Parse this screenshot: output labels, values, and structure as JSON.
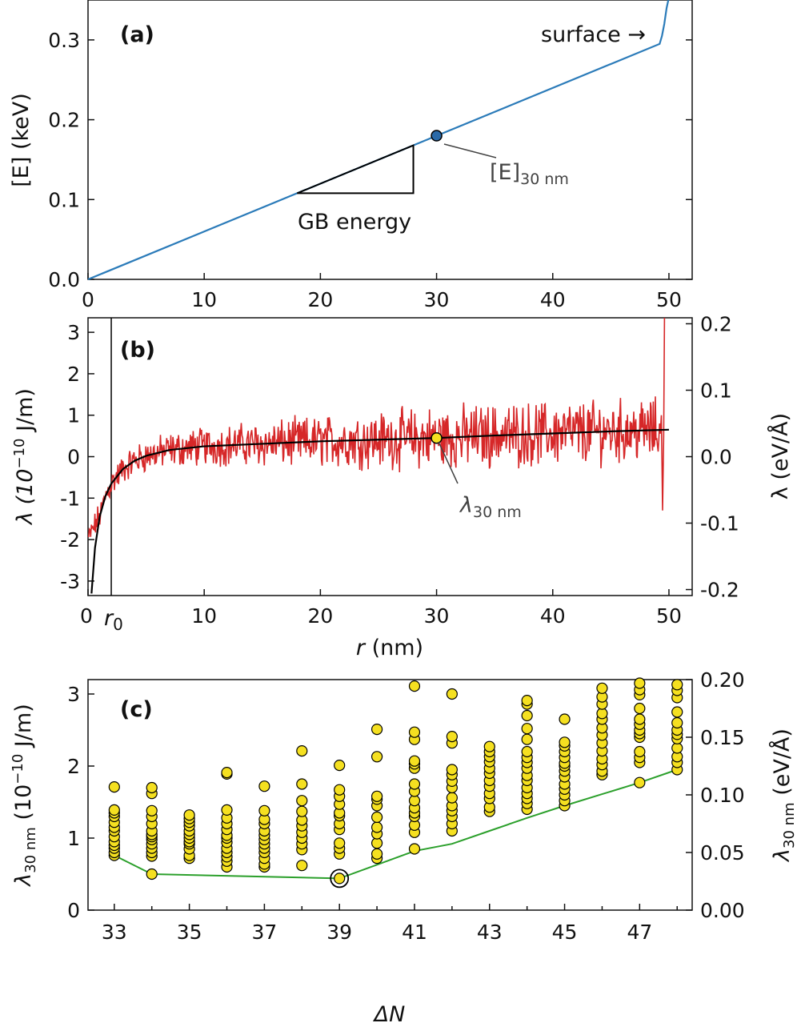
{
  "chart_data": [
    {
      "type": "line",
      "panel_label": "(a)",
      "ylabel": "[E] (keV)",
      "xlim": [
        0,
        52
      ],
      "ylim": [
        0,
        0.35
      ],
      "x_ticks": [
        "0",
        "10",
        "20",
        "30",
        "40",
        "50"
      ],
      "y_ticks": [
        "0.0",
        "0.1",
        "0.2",
        "0.3"
      ],
      "series": [
        {
          "color": "#2b7bb9",
          "x": [
            0,
            49.2,
            49.4,
            49.6,
            49.8,
            49.95
          ],
          "y": [
            0,
            0.295,
            0.305,
            0.32,
            0.34,
            0.36
          ]
        }
      ],
      "marker": {
        "x": 30,
        "y": 0.18,
        "color": "#2b6aa8"
      },
      "annotations": {
        "surface": "surface →",
        "e30_main": "[E]",
        "e30_sub": "30 nm",
        "gb_energy": "GB energy"
      }
    },
    {
      "type": "line",
      "panel_label": "(b)",
      "xlabel_italic": "r",
      "xlabel_unit": " (nm)",
      "ylabel_left": "λ (10",
      "ylabel_left_exp": "−10",
      "ylabel_left_unit": " J/m)",
      "ylabel_right": "λ (eV/Å)",
      "xlim": [
        0,
        52
      ],
      "ylim": [
        -3.35,
        3.35
      ],
      "ylim_right": [
        -0.209,
        0.209
      ],
      "x_ticks": [
        "0",
        "10",
        "20",
        "30",
        "40",
        "50"
      ],
      "y_ticks_left": [
        "-3",
        "-2",
        "-1",
        "0",
        "1",
        "2",
        "3"
      ],
      "y_ticks_right": [
        "-0.2",
        "-0.1",
        "0.0",
        "0.1",
        "0.2"
      ],
      "r0_label": "r",
      "r0_sub": "0",
      "r0": 2,
      "series": [
        {
          "name": "raw",
          "color": "#d62728",
          "description_points": "noisy"
        },
        {
          "name": "fit",
          "color": "#000000"
        }
      ],
      "fit_points": {
        "x": [
          0.3,
          0.6,
          1,
          1.5,
          2,
          3,
          4,
          5,
          7,
          10,
          15,
          20,
          25,
          30,
          35,
          40,
          45,
          50
        ],
        "y": [
          -3.3,
          -2.2,
          -1.45,
          -0.95,
          -0.65,
          -0.3,
          -0.1,
          0.02,
          0.16,
          0.25,
          0.31,
          0.37,
          0.41,
          0.45,
          0.51,
          0.56,
          0.61,
          0.65
        ]
      },
      "marker": {
        "x": 30,
        "y": 0.45,
        "color": "#f5e020"
      },
      "annotations": {
        "lambda_main": "λ",
        "lambda_sub": "30 nm"
      }
    },
    {
      "type": "scatter",
      "panel_label": "(c)",
      "xlabel": "ΔN",
      "ylabel_left_main": "λ",
      "ylabel_left_sub": "30 nm",
      "ylabel_left_rest": " (10",
      "ylabel_left_exp": "−10",
      "ylabel_left_unit": " J/m)",
      "ylabel_right_main": "λ",
      "ylabel_right_sub": "30 nm",
      "ylabel_right_unit": " (eV/Å)",
      "xlim": [
        32.3,
        48.4
      ],
      "ylim": [
        0,
        3.2
      ],
      "ylim_right": [
        0,
        0.2
      ],
      "x_ticks": [
        "33",
        "35",
        "37",
        "39",
        "41",
        "43",
        "45",
        "47"
      ],
      "y_ticks_left": [
        "0",
        "1",
        "2",
        "3"
      ],
      "y_ticks_right": [
        "0.00",
        "0.05",
        "0.10",
        "0.15",
        "0.20"
      ],
      "point_color": "#f5e020",
      "points": {
        "33": [
          0.76,
          0.8,
          0.86,
          0.9,
          0.95,
          1.02,
          1.1,
          1.15,
          1.22,
          1.3,
          1.35,
          1.39,
          1.71
        ],
        "34": [
          0.5,
          0.75,
          0.8,
          0.86,
          0.92,
          0.98,
          1.02,
          1.05,
          1.1,
          1.2,
          1.3,
          1.38,
          1.62,
          1.7
        ],
        "35": [
          0.72,
          0.76,
          0.85,
          0.92,
          0.95,
          1.0,
          1.05,
          1.1,
          1.17,
          1.22,
          1.27,
          1.32
        ],
        "36": [
          0.6,
          0.68,
          0.74,
          0.8,
          0.86,
          0.94,
          1.0,
          1.04,
          1.12,
          1.2,
          1.28,
          1.39,
          1.89,
          1.91
        ],
        "37": [
          0.6,
          0.64,
          0.72,
          0.8,
          0.86,
          0.92,
          0.98,
          1.04,
          1.1,
          1.2,
          1.26,
          1.38,
          1.72
        ],
        "38": [
          0.62,
          0.84,
          0.92,
          1.0,
          1.08,
          1.17,
          1.25,
          1.37,
          1.52,
          1.75,
          2.21
        ],
        "39": [
          0.44,
          0.78,
          0.86,
          0.93,
          1.12,
          1.2,
          1.31,
          1.35,
          1.47,
          1.58,
          1.67,
          2.01
        ],
        "40": [
          0.72,
          0.78,
          0.93,
          1.06,
          1.15,
          1.29,
          1.45,
          1.54,
          1.58,
          2.13,
          2.51
        ],
        "41": [
          0.85,
          1.08,
          1.18,
          1.3,
          1.35,
          1.42,
          1.52,
          1.65,
          1.75,
          1.97,
          2.03,
          2.07,
          2.37,
          2.47,
          3.11
        ],
        "42": [
          1.1,
          1.2,
          1.3,
          1.38,
          1.45,
          1.56,
          1.7,
          1.79,
          1.88,
          1.95,
          2.32,
          2.41,
          3.0
        ],
        "43": [
          1.37,
          1.43,
          1.55,
          1.62,
          1.72,
          1.8,
          1.9,
          1.97,
          2.06,
          2.13,
          2.2,
          2.27
        ],
        "44": [
          1.4,
          1.48,
          1.55,
          1.62,
          1.7,
          1.8,
          1.87,
          1.97,
          2.05,
          2.12,
          2.2,
          2.37,
          2.52,
          2.7,
          2.86,
          2.91
        ],
        "45": [
          1.45,
          1.52,
          1.6,
          1.68,
          1.75,
          1.85,
          1.93,
          2.0,
          2.04,
          2.12,
          2.2,
          2.28,
          2.33,
          2.65
        ],
        "46": [
          1.88,
          1.93,
          2.02,
          2.1,
          2.21,
          2.32,
          2.43,
          2.53,
          2.65,
          2.73,
          2.86,
          2.96,
          3.08
        ],
        "47": [
          1.77,
          2.05,
          2.12,
          2.2,
          2.4,
          2.45,
          2.5,
          2.58,
          2.65,
          2.8,
          2.99,
          3.06,
          3.15
        ],
        "48": [
          1.95,
          2.05,
          2.13,
          2.25,
          2.38,
          2.44,
          2.5,
          2.6,
          2.75,
          2.95,
          3.05,
          3.13
        ]
      },
      "min_line": {
        "color": "#2ca02c",
        "x": [
          33,
          34,
          39,
          40,
          41,
          42,
          43,
          44,
          45,
          46,
          47,
          48
        ],
        "y": [
          0.76,
          0.5,
          0.44,
          0.63,
          0.82,
          0.92,
          1.1,
          1.28,
          1.45,
          1.61,
          1.77,
          1.95
        ]
      },
      "highlighted": {
        "x": 39,
        "y": 0.44
      }
    }
  ]
}
